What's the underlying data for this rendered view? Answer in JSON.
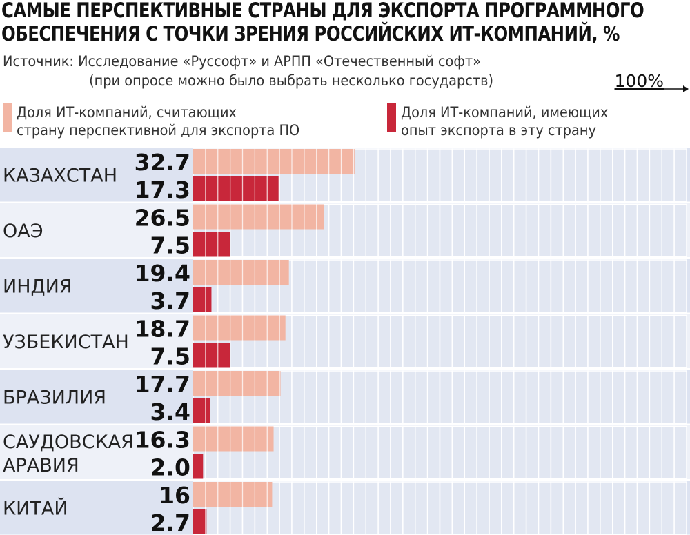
{
  "title_line1": "САМЫЕ ПЕРСПЕКТИВНЫЕ СТРАНЫ ДЛЯ ЭКСПОРТА ПРОГРАММНОГО",
  "title_line2": "ОБЕСПЕЧЕНИЯ С ТОЧКИ ЗРЕНИЯ РОССИЙСКИХ ИТ-КОМПАНИЙ, %",
  "source_line1": "Источник: Исследование «Руссофт» и АРПП «Отечественный софт»",
  "source_line2": "(при опросе можно было выбрать несколько государств)",
  "scale_label": "100%",
  "legend": {
    "series1_line1": "Доля ИТ-компаний, считающих",
    "series1_line2": "страну перспективной для экспорта ПО",
    "series2_line1": "Доля ИТ-компаний, имеющих",
    "series2_line2": "опыт экспорта в эту страну"
  },
  "colors": {
    "series1": "#f2b5a3",
    "series2": "#c8273a",
    "band_dark": "#dde3f1",
    "band_light": "#eef1f8",
    "grid_cell": "#e2e7f2",
    "grid_cell_border": "#ffffff"
  },
  "chart_data": {
    "type": "bar",
    "orientation": "horizontal",
    "xlim": [
      0,
      100
    ],
    "categories": [
      [
        "КАЗАХСТАН"
      ],
      [
        "ОАЭ"
      ],
      [
        "ИНДИЯ"
      ],
      [
        "УЗБЕКИСТАН"
      ],
      [
        "БРАЗИЛИЯ"
      ],
      [
        "САУДОВСКАЯ",
        "АРАВИЯ"
      ],
      [
        "КИТАЙ"
      ]
    ],
    "series": [
      {
        "name": "Доля ИТ-компаний, считающих страну перспективной для экспорта ПО",
        "values": [
          32.7,
          26.5,
          19.4,
          18.7,
          17.7,
          16.3,
          16
        ],
        "labels": [
          "32.7",
          "26.5",
          "19.4",
          "18.7",
          "17.7",
          "16.3",
          "16"
        ]
      },
      {
        "name": "Доля ИТ-компаний, имеющих опыт экспорта в эту страну",
        "values": [
          17.3,
          7.5,
          3.7,
          7.5,
          3.4,
          2.0,
          2.7
        ],
        "labels": [
          "17.3",
          "7.5",
          "3.7",
          "7.5",
          "3.4",
          "2.0",
          "2.7"
        ]
      }
    ]
  }
}
